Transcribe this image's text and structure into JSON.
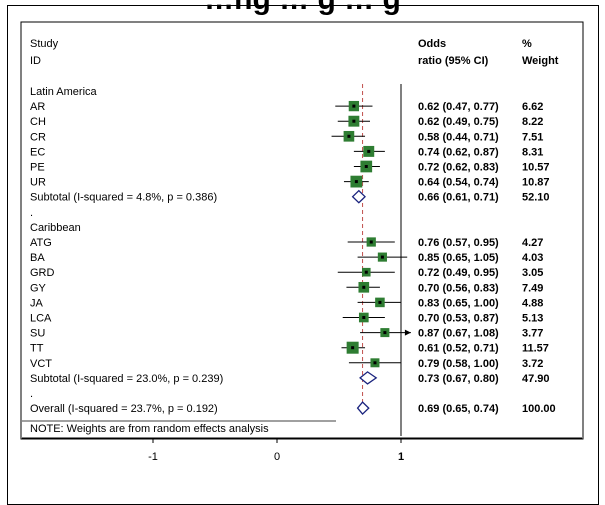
{
  "page_title_fragment": "…ng … g … g",
  "chart_data": {
    "type": "forest",
    "headers": {
      "study_line1": "Study",
      "study_line2": "ID",
      "or_line1": "Odds",
      "or_line2": "ratio (95% CI)",
      "weight_line1": "%",
      "weight_line2": "Weight"
    },
    "xaxis": {
      "ticks": [
        -1,
        0,
        1
      ],
      "tick_labels": [
        "-1",
        "0",
        "1"
      ],
      "range": [
        -1.96,
        1.65
      ],
      "null_line": 1,
      "overall_line": 0.69
    },
    "rows": [
      {
        "kind": "group",
        "label": "Latin America"
      },
      {
        "kind": "study",
        "label": "AR",
        "or": 0.62,
        "lo": 0.47,
        "hi": 0.77,
        "weight": 6.62,
        "ci_text": "0.62 (0.47, 0.77)",
        "weight_text": "6.62"
      },
      {
        "kind": "study",
        "label": "CH",
        "or": 0.62,
        "lo": 0.49,
        "hi": 0.75,
        "weight": 8.22,
        "ci_text": "0.62 (0.49, 0.75)",
        "weight_text": "8.22"
      },
      {
        "kind": "study",
        "label": "CR",
        "or": 0.58,
        "lo": 0.44,
        "hi": 0.71,
        "weight": 7.51,
        "ci_text": "0.58 (0.44, 0.71)",
        "weight_text": "7.51"
      },
      {
        "kind": "study",
        "label": "EC",
        "or": 0.74,
        "lo": 0.62,
        "hi": 0.87,
        "weight": 8.31,
        "ci_text": "0.74 (0.62, 0.87)",
        "weight_text": "8.31"
      },
      {
        "kind": "study",
        "label": "PE",
        "or": 0.72,
        "lo": 0.62,
        "hi": 0.83,
        "weight": 10.57,
        "ci_text": "0.72 (0.62, 0.83)",
        "weight_text": "10.57"
      },
      {
        "kind": "study",
        "label": "UR",
        "or": 0.64,
        "lo": 0.54,
        "hi": 0.74,
        "weight": 10.87,
        "ci_text": "0.64 (0.54, 0.74)",
        "weight_text": "10.87"
      },
      {
        "kind": "subtotal",
        "label": "Subtotal  (I-squared = 4.8%, p = 0.386)",
        "or": 0.66,
        "lo": 0.61,
        "hi": 0.71,
        "ci_text": "0.66 (0.61, 0.71)",
        "weight_text": "52.10"
      },
      {
        "kind": "spacer",
        "label": "."
      },
      {
        "kind": "group",
        "label": "Caribbean"
      },
      {
        "kind": "study",
        "label": "ATG",
        "or": 0.76,
        "lo": 0.57,
        "hi": 0.95,
        "weight": 4.27,
        "ci_text": "0.76 (0.57, 0.95)",
        "weight_text": "4.27"
      },
      {
        "kind": "study",
        "label": "BA",
        "or": 0.85,
        "lo": 0.65,
        "hi": 1.05,
        "weight": 4.03,
        "ci_text": "0.85 (0.65, 1.05)",
        "weight_text": "4.03"
      },
      {
        "kind": "study",
        "label": "GRD",
        "or": 0.72,
        "lo": 0.49,
        "hi": 0.95,
        "weight": 3.05,
        "ci_text": "0.72 (0.49, 0.95)",
        "weight_text": "3.05"
      },
      {
        "kind": "study",
        "label": "GY",
        "or": 0.7,
        "lo": 0.56,
        "hi": 0.83,
        "weight": 7.49,
        "ci_text": "0.70 (0.56, 0.83)",
        "weight_text": "7.49"
      },
      {
        "kind": "study",
        "label": "JA",
        "or": 0.83,
        "lo": 0.65,
        "hi": 1.0,
        "weight": 4.88,
        "ci_text": "0.83 (0.65, 1.00)",
        "weight_text": "4.88"
      },
      {
        "kind": "study",
        "label": "LCA",
        "or": 0.7,
        "lo": 0.53,
        "hi": 0.87,
        "weight": 5.13,
        "ci_text": "0.70 (0.53, 0.87)",
        "weight_text": "5.13"
      },
      {
        "kind": "study",
        "label": "SU",
        "or": 0.87,
        "lo": 0.67,
        "hi": 1.08,
        "weight": 3.77,
        "ci_text": "0.87 (0.67, 1.08)",
        "weight_text": "3.77",
        "arrow": true
      },
      {
        "kind": "study",
        "label": "TT",
        "or": 0.61,
        "lo": 0.52,
        "hi": 0.71,
        "weight": 11.57,
        "ci_text": "0.61 (0.52, 0.71)",
        "weight_text": "11.57"
      },
      {
        "kind": "study",
        "label": "VCT",
        "or": 0.79,
        "lo": 0.58,
        "hi": 1.0,
        "weight": 3.72,
        "ci_text": "0.79 (0.58, 1.00)",
        "weight_text": "3.72"
      },
      {
        "kind": "subtotal",
        "label": "Subtotal  (I-squared = 23.0%, p = 0.239)",
        "or": 0.73,
        "lo": 0.67,
        "hi": 0.8,
        "ci_text": "0.73 (0.67, 0.80)",
        "weight_text": "47.90"
      },
      {
        "kind": "spacer",
        "label": "."
      },
      {
        "kind": "overall",
        "label": "Overall  (I-squared = 23.7%, p = 0.192)",
        "or": 0.69,
        "lo": 0.65,
        "hi": 0.74,
        "ci_text": "0.69 (0.65, 0.74)",
        "weight_text": "100.00"
      }
    ],
    "note": "NOTE: Weights are from random effects analysis",
    "colors": {
      "box": "#2e7d32",
      "diamond": "#1a237e",
      "line": "#000000",
      "overall_line": "#c0504d"
    }
  }
}
